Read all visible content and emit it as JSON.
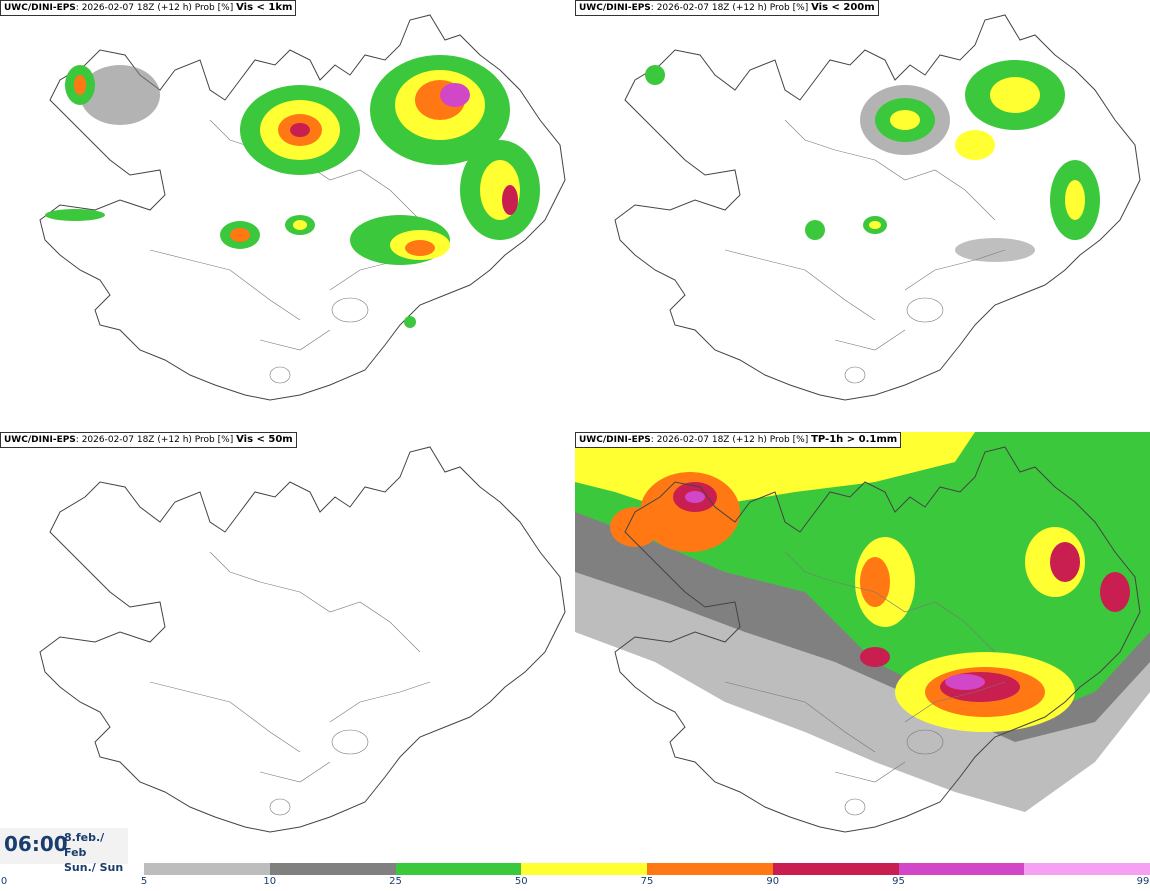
{
  "panels": [
    {
      "model": "UWC/DINI-EPS",
      "info": ": 2026-02-07 18Z (+12 h) Prob [%]",
      "field": "Vis < 1km"
    },
    {
      "model": "UWC/DINI-EPS",
      "info": ": 2026-02-07 18Z (+12 h) Prob [%]",
      "field": "Vis < 200m"
    },
    {
      "model": "UWC/DINI-EPS",
      "info": ": 2026-02-07 18Z (+12 h) Prob [%]",
      "field": "Vis < 50m"
    },
    {
      "model": "UWC/DINI-EPS",
      "info": ": 2026-02-07 18Z (+12 h) Prob [%]",
      "field": "TP-1h > 0.1mm"
    }
  ],
  "valid_time": {
    "clock": "06:00",
    "date_line1": "8.feb./ Feb",
    "date_line2": "Sun./ Sun"
  },
  "legend": {
    "ticks": [
      "0",
      "5",
      "10",
      "25",
      "50",
      "75",
      "90",
      "95",
      "99"
    ],
    "colors": [
      "#bdbdbd",
      "#808080",
      "#3cc83c",
      "#ffff32",
      "#ff7814",
      "#c81e50",
      "#d246c8",
      "#f5a0f0"
    ]
  }
}
